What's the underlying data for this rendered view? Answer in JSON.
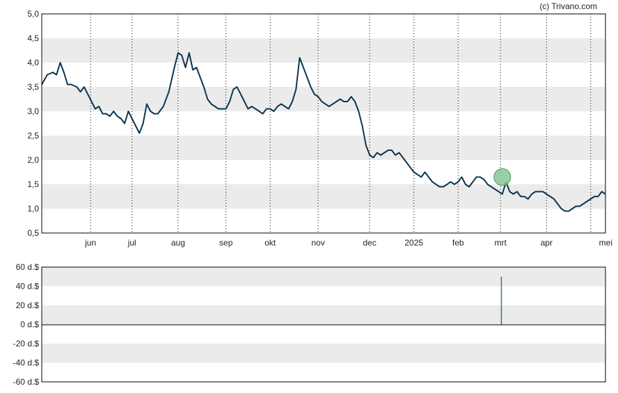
{
  "credit": "(c) Trivano.com",
  "colors": {
    "line": "#0d3550",
    "band": "#ebebeb",
    "marker_fill": "#8cc796",
    "marker_stroke": "#4a9a5a",
    "volume_bar": "#2e8b3e",
    "axis": "#000000"
  },
  "chart_data": [
    {
      "type": "line",
      "ylim": [
        0.5,
        5.0
      ],
      "y_ticks": [
        "5,0",
        "4,5",
        "4,0",
        "3,5",
        "3,0",
        "2,5",
        "2,0",
        "1,5",
        "1,0",
        "0,5"
      ],
      "x_ticks": [
        "jun",
        "jul",
        "aug",
        "sep",
        "okt",
        "nov",
        "dec",
        "2025",
        "feb",
        "mrt",
        "apr",
        "mei"
      ],
      "grid": "dotted vertical lines at month boundaries, alternating horizontal bands",
      "series": [
        {
          "points": [
            [
              0.0,
              3.55
            ],
            [
              0.3,
              3.75
            ],
            [
              0.6,
              3.8
            ],
            [
              0.8,
              3.75
            ],
            [
              1.0,
              4.0
            ],
            [
              1.2,
              3.8
            ],
            [
              1.4,
              3.55
            ],
            [
              1.6,
              3.55
            ],
            [
              1.9,
              3.5
            ],
            [
              2.1,
              3.4
            ],
            [
              2.3,
              3.5
            ],
            [
              2.5,
              3.35
            ],
            [
              2.7,
              3.2
            ],
            [
              2.9,
              3.05
            ],
            [
              3.1,
              3.1
            ],
            [
              3.3,
              2.95
            ],
            [
              3.5,
              2.95
            ],
            [
              3.7,
              2.9
            ],
            [
              3.9,
              3.0
            ],
            [
              4.1,
              2.9
            ],
            [
              4.3,
              2.85
            ],
            [
              4.5,
              2.75
            ],
            [
              4.7,
              3.0
            ],
            [
              4.9,
              2.85
            ],
            [
              5.1,
              2.7
            ],
            [
              5.3,
              2.55
            ],
            [
              5.5,
              2.75
            ],
            [
              5.7,
              3.15
            ],
            [
              5.9,
              3.0
            ],
            [
              6.1,
              2.95
            ],
            [
              6.3,
              2.95
            ],
            [
              6.6,
              3.1
            ],
            [
              6.9,
              3.4
            ],
            [
              7.2,
              3.9
            ],
            [
              7.4,
              4.2
            ],
            [
              7.6,
              4.15
            ],
            [
              7.8,
              3.9
            ],
            [
              8.0,
              4.2
            ],
            [
              8.2,
              3.85
            ],
            [
              8.4,
              3.9
            ],
            [
              8.6,
              3.7
            ],
            [
              8.8,
              3.5
            ],
            [
              9.0,
              3.25
            ],
            [
              9.2,
              3.15
            ],
            [
              9.4,
              3.1
            ],
            [
              9.6,
              3.05
            ],
            [
              9.8,
              3.05
            ],
            [
              10.0,
              3.05
            ],
            [
              10.2,
              3.2
            ],
            [
              10.4,
              3.45
            ],
            [
              10.6,
              3.5
            ],
            [
              10.8,
              3.35
            ],
            [
              11.0,
              3.2
            ],
            [
              11.2,
              3.05
            ],
            [
              11.4,
              3.1
            ],
            [
              11.6,
              3.05
            ],
            [
              11.8,
              3.0
            ],
            [
              12.0,
              2.95
            ],
            [
              12.2,
              3.05
            ],
            [
              12.4,
              3.05
            ],
            [
              12.6,
              3.0
            ],
            [
              12.8,
              3.1
            ],
            [
              13.0,
              3.15
            ],
            [
              13.2,
              3.1
            ],
            [
              13.4,
              3.05
            ],
            [
              13.6,
              3.2
            ],
            [
              13.8,
              3.45
            ],
            [
              14.0,
              4.1
            ],
            [
              14.2,
              3.9
            ],
            [
              14.4,
              3.7
            ],
            [
              14.6,
              3.5
            ],
            [
              14.8,
              3.35
            ],
            [
              15.0,
              3.3
            ],
            [
              15.2,
              3.2
            ],
            [
              15.4,
              3.15
            ],
            [
              15.6,
              3.1
            ],
            [
              15.8,
              3.15
            ],
            [
              16.0,
              3.2
            ],
            [
              16.2,
              3.25
            ],
            [
              16.4,
              3.2
            ],
            [
              16.6,
              3.2
            ],
            [
              16.8,
              3.3
            ],
            [
              17.0,
              3.2
            ],
            [
              17.2,
              3.0
            ],
            [
              17.4,
              2.7
            ],
            [
              17.6,
              2.3
            ],
            [
              17.8,
              2.1
            ],
            [
              18.0,
              2.05
            ],
            [
              18.2,
              2.15
            ],
            [
              18.4,
              2.1
            ],
            [
              18.6,
              2.15
            ],
            [
              18.8,
              2.2
            ],
            [
              19.0,
              2.2
            ],
            [
              19.2,
              2.1
            ],
            [
              19.4,
              2.15
            ],
            [
              19.6,
              2.05
            ],
            [
              19.8,
              1.95
            ],
            [
              20.0,
              1.85
            ],
            [
              20.2,
              1.75
            ],
            [
              20.4,
              1.7
            ],
            [
              20.6,
              1.65
            ],
            [
              20.8,
              1.75
            ],
            [
              21.0,
              1.65
            ],
            [
              21.2,
              1.55
            ],
            [
              21.4,
              1.5
            ],
            [
              21.6,
              1.45
            ],
            [
              21.8,
              1.45
            ],
            [
              22.0,
              1.5
            ],
            [
              22.2,
              1.55
            ],
            [
              22.4,
              1.5
            ],
            [
              22.6,
              1.55
            ],
            [
              22.8,
              1.65
            ],
            [
              23.0,
              1.5
            ],
            [
              23.2,
              1.45
            ],
            [
              23.4,
              1.55
            ],
            [
              23.6,
              1.65
            ],
            [
              23.8,
              1.65
            ],
            [
              24.0,
              1.6
            ],
            [
              24.2,
              1.5
            ],
            [
              24.4,
              1.45
            ],
            [
              24.6,
              1.4
            ],
            [
              24.8,
              1.35
            ],
            [
              25.0,
              1.3
            ],
            [
              25.2,
              1.55
            ],
            [
              25.4,
              1.35
            ],
            [
              25.6,
              1.3
            ],
            [
              25.8,
              1.35
            ],
            [
              26.0,
              1.25
            ],
            [
              26.2,
              1.25
            ],
            [
              26.4,
              1.2
            ],
            [
              26.6,
              1.3
            ],
            [
              26.8,
              1.35
            ],
            [
              27.0,
              1.35
            ],
            [
              27.2,
              1.35
            ],
            [
              27.4,
              1.3
            ],
            [
              27.6,
              1.25
            ],
            [
              27.8,
              1.2
            ],
            [
              28.0,
              1.1
            ],
            [
              28.2,
              1.0
            ],
            [
              28.4,
              0.95
            ],
            [
              28.6,
              0.95
            ],
            [
              28.8,
              1.0
            ],
            [
              29.0,
              1.05
            ],
            [
              29.2,
              1.05
            ],
            [
              29.4,
              1.1
            ],
            [
              29.6,
              1.15
            ],
            [
              29.8,
              1.2
            ],
            [
              30.0,
              1.25
            ],
            [
              30.2,
              1.25
            ],
            [
              30.4,
              1.35
            ],
            [
              30.6,
              1.3
            ]
          ]
        }
      ],
      "x_domain": [
        0,
        30.6
      ],
      "month_tick_positions": [
        2.65,
        4.9,
        7.4,
        10.0,
        12.4,
        15.0,
        17.8,
        20.2,
        22.6,
        24.9,
        27.4,
        29.8
      ],
      "marker": {
        "x": 25.0,
        "y": 1.65
      }
    },
    {
      "type": "bar",
      "ylim": [
        -60,
        60
      ],
      "y_ticks": [
        "60 d.$",
        "40 d.$",
        "20 d.$",
        "0 d.$",
        "-20 d.$",
        "-40 d.$",
        "-60 d.$"
      ],
      "bars": [
        {
          "x": 24.95,
          "value": 50
        }
      ]
    }
  ]
}
